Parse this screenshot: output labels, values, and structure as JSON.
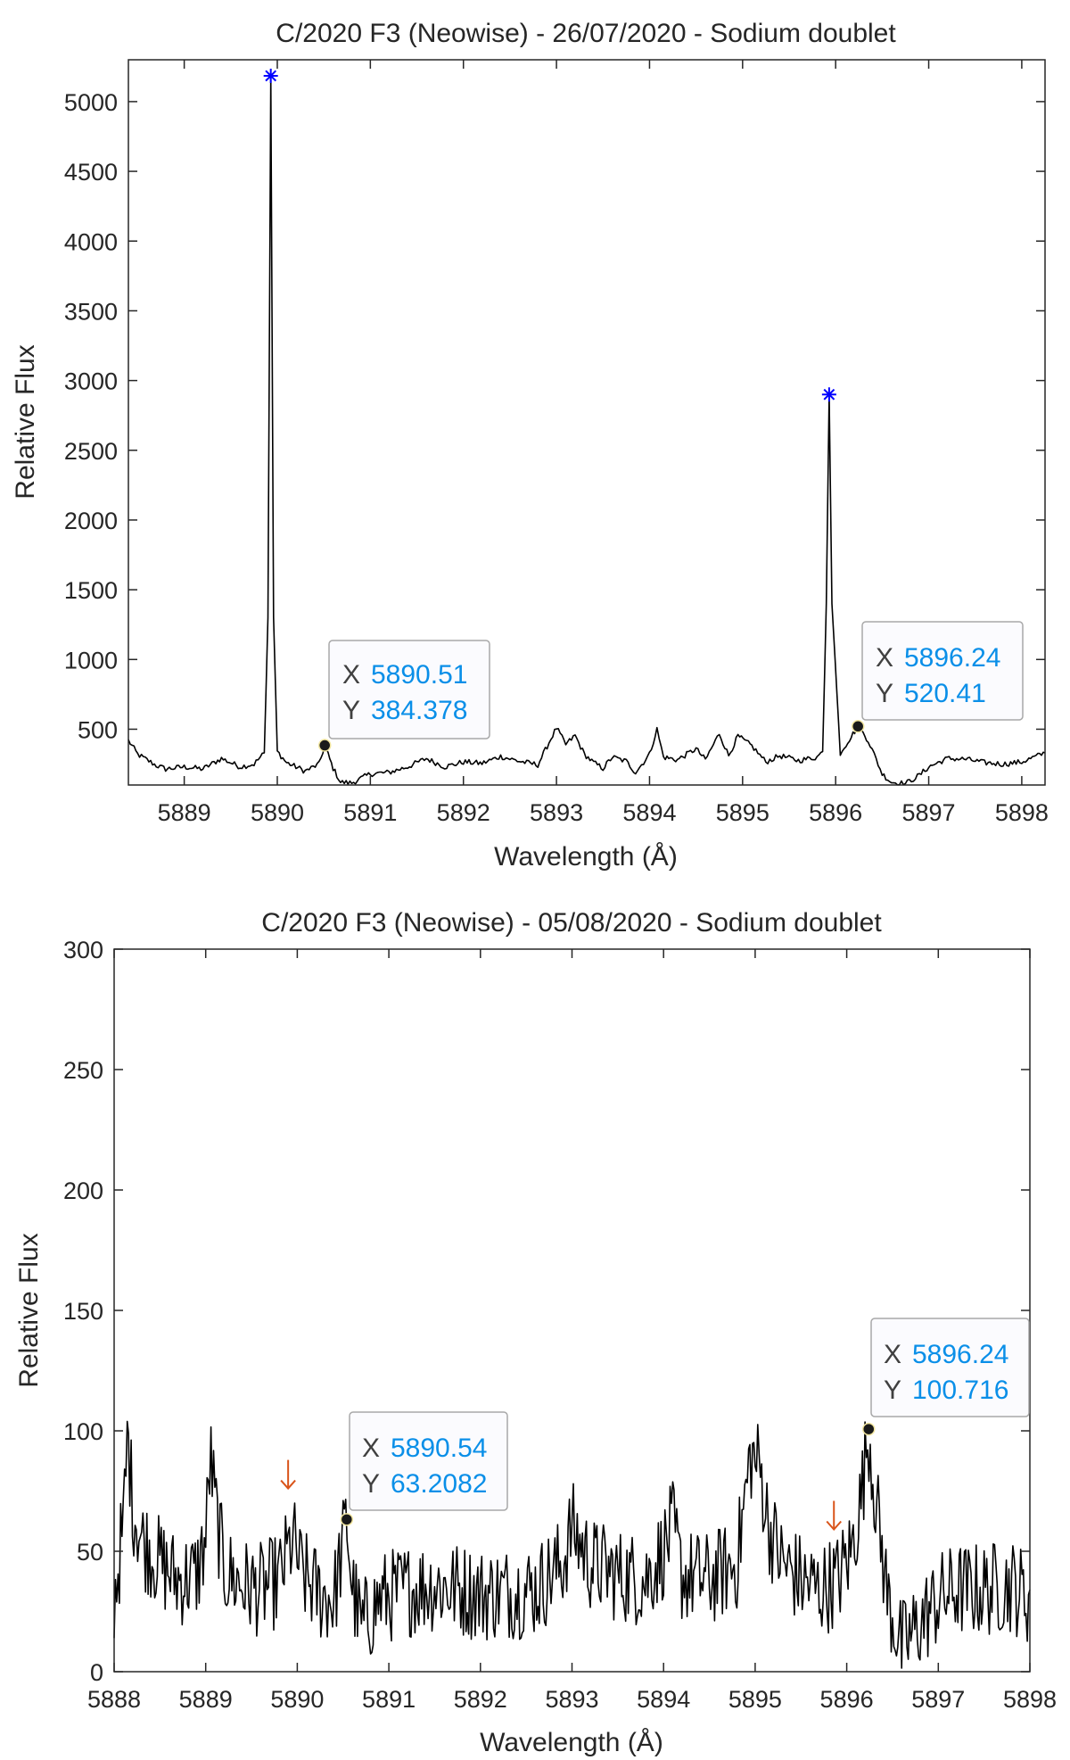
{
  "chart_data": [
    {
      "type": "line",
      "title": "C/2020 F3 (Neowise) - 26/07/2020 - Sodium doublet",
      "xlabel": "Wavelength (Å)",
      "ylabel": "Relative Flux",
      "xlim": [
        5888.4,
        5898.25
      ],
      "ylim": [
        100,
        5300
      ],
      "xticks": [
        5889,
        5890,
        5891,
        5892,
        5893,
        5894,
        5895,
        5896,
        5897,
        5898
      ],
      "xtick_labels": [
        "5889",
        "5890",
        "5891",
        "5892",
        "5893",
        "5894",
        "5895",
        "5896",
        "5897",
        "5898"
      ],
      "yticks": [
        500,
        1000,
        1500,
        2000,
        2500,
        3000,
        3500,
        4000,
        4500,
        5000
      ],
      "ytick_labels": [
        "500",
        "1000",
        "1500",
        "2000",
        "2500",
        "3000",
        "3500",
        "4000",
        "4500",
        "5000"
      ],
      "grid": false,
      "series": [
        {
          "color": "#000000",
          "points": [
            [
              5888.4,
              420
            ],
            [
              5888.5,
              320
            ],
            [
              5888.6,
              280
            ],
            [
              5888.7,
              240
            ],
            [
              5888.8,
              215
            ],
            [
              5889.0,
              230
            ],
            [
              5889.2,
              215
            ],
            [
              5889.4,
              290
            ],
            [
              5889.6,
              230
            ],
            [
              5889.75,
              250
            ],
            [
              5889.86,
              330
            ],
            [
              5889.9,
              1300
            ],
            [
              5889.93,
              5185
            ],
            [
              5889.96,
              1300
            ],
            [
              5890.0,
              340
            ],
            [
              5890.1,
              260
            ],
            [
              5890.3,
              200
            ],
            [
              5890.45,
              250
            ],
            [
              5890.51,
              384
            ],
            [
              5890.6,
              220
            ],
            [
              5890.68,
              120
            ],
            [
              5890.8,
              115
            ],
            [
              5891.0,
              180
            ],
            [
              5891.2,
              190
            ],
            [
              5891.4,
              230
            ],
            [
              5891.6,
              290
            ],
            [
              5891.8,
              230
            ],
            [
              5892.0,
              265
            ],
            [
              5892.2,
              255
            ],
            [
              5892.4,
              305
            ],
            [
              5892.6,
              270
            ],
            [
              5892.8,
              245
            ],
            [
              5893.0,
              510
            ],
            [
              5893.1,
              390
            ],
            [
              5893.2,
              455
            ],
            [
              5893.3,
              320
            ],
            [
              5893.4,
              260
            ],
            [
              5893.5,
              220
            ],
            [
              5893.6,
              300
            ],
            [
              5893.75,
              270
            ],
            [
              5893.85,
              190
            ],
            [
              5894.0,
              320
            ],
            [
              5894.08,
              500
            ],
            [
              5894.15,
              300
            ],
            [
              5894.3,
              280
            ],
            [
              5894.5,
              360
            ],
            [
              5894.6,
              280
            ],
            [
              5894.75,
              470
            ],
            [
              5894.85,
              310
            ],
            [
              5894.95,
              450
            ],
            [
              5895.1,
              380
            ],
            [
              5895.25,
              265
            ],
            [
              5895.4,
              310
            ],
            [
              5895.6,
              275
            ],
            [
              5895.8,
              300
            ],
            [
              5895.86,
              340
            ],
            [
              5895.9,
              1400
            ],
            [
              5895.93,
              2900
            ],
            [
              5895.96,
              1400
            ],
            [
              5896.05,
              330
            ],
            [
              5896.15,
              430
            ],
            [
              5896.24,
              520
            ],
            [
              5896.35,
              420
            ],
            [
              5896.5,
              180
            ],
            [
              5896.6,
              120
            ],
            [
              5896.75,
              110
            ],
            [
              5896.9,
              170
            ],
            [
              5897.0,
              230
            ],
            [
              5897.2,
              290
            ],
            [
              5897.4,
              285
            ],
            [
              5897.6,
              260
            ],
            [
              5897.8,
              250
            ],
            [
              5898.0,
              265
            ],
            [
              5898.25,
              330
            ]
          ]
        }
      ],
      "peak_markers": [
        {
          "x": 5889.93,
          "y": 5185,
          "color": "#0000ff"
        },
        {
          "x": 5895.93,
          "y": 2900,
          "color": "#0000ff"
        }
      ],
      "datatips": [
        {
          "x_label": "X",
          "y_label": "Y",
          "x_value": "5890.51",
          "y_value": "384.378",
          "x": 5890.51,
          "y": 384.378
        },
        {
          "x_label": "X",
          "y_label": "Y",
          "x_value": "5896.24",
          "y_value": "520.41",
          "x": 5896.24,
          "y": 520.41
        }
      ]
    },
    {
      "type": "line",
      "title": "C/2020 F3 (Neowise) - 05/08/2020 - Sodium doublet",
      "xlabel": "Wavelength (Å)",
      "ylabel": "Relative Flux",
      "xlim": [
        5888,
        5898
      ],
      "ylim": [
        0,
        300
      ],
      "xticks": [
        5888,
        5889,
        5890,
        5891,
        5892,
        5893,
        5894,
        5895,
        5896,
        5897,
        5898
      ],
      "xtick_labels": [
        "5888",
        "5889",
        "5890",
        "5891",
        "5892",
        "5893",
        "5894",
        "5895",
        "5896",
        "5897",
        "5898"
      ],
      "yticks": [
        0,
        50,
        100,
        150,
        200,
        250,
        300
      ],
      "ytick_labels": [
        "0",
        "50",
        "100",
        "150",
        "200",
        "250",
        "300"
      ],
      "grid": false,
      "series": [
        {
          "color": "#000000",
          "noise": 20,
          "points": [
            [
              5888.0,
              30
            ],
            [
              5888.05,
              45
            ],
            [
              5888.1,
              60
            ],
            [
              5888.15,
              100
            ],
            [
              5888.2,
              70
            ],
            [
              5888.3,
              55
            ],
            [
              5888.5,
              45
            ],
            [
              5888.7,
              38
            ],
            [
              5888.9,
              40
            ],
            [
              5889.0,
              55
            ],
            [
              5889.05,
              90
            ],
            [
              5889.1,
              70
            ],
            [
              5889.2,
              42
            ],
            [
              5889.4,
              36
            ],
            [
              5889.6,
              34
            ],
            [
              5889.8,
              38
            ],
            [
              5889.95,
              55
            ],
            [
              5890.05,
              40
            ],
            [
              5890.25,
              32
            ],
            [
              5890.4,
              30
            ],
            [
              5890.54,
              63
            ],
            [
              5890.6,
              35
            ],
            [
              5890.7,
              18
            ],
            [
              5890.9,
              30
            ],
            [
              5891.2,
              34
            ],
            [
              5891.5,
              36
            ],
            [
              5891.8,
              34
            ],
            [
              5892.0,
              32
            ],
            [
              5892.3,
              33
            ],
            [
              5892.6,
              34
            ],
            [
              5892.9,
              45
            ],
            [
              5893.0,
              60
            ],
            [
              5893.2,
              45
            ],
            [
              5893.5,
              40
            ],
            [
              5893.8,
              38
            ],
            [
              5894.0,
              50
            ],
            [
              5894.1,
              60
            ],
            [
              5894.2,
              40
            ],
            [
              5894.5,
              38
            ],
            [
              5894.8,
              45
            ],
            [
              5894.95,
              90
            ],
            [
              5895.05,
              85
            ],
            [
              5895.15,
              60
            ],
            [
              5895.3,
              45
            ],
            [
              5895.5,
              38
            ],
            [
              5895.7,
              34
            ],
            [
              5895.9,
              38
            ],
            [
              5896.05,
              50
            ],
            [
              5896.15,
              70
            ],
            [
              5896.24,
              100
            ],
            [
              5896.32,
              70
            ],
            [
              5896.45,
              30
            ],
            [
              5896.6,
              10
            ],
            [
              5896.8,
              20
            ],
            [
              5897.0,
              30
            ],
            [
              5897.2,
              34
            ],
            [
              5897.5,
              34
            ],
            [
              5897.8,
              36
            ],
            [
              5898.0,
              30
            ]
          ]
        }
      ],
      "arrow_markers": [
        {
          "x": 5889.9,
          "y": 82,
          "color": "#d9541a"
        },
        {
          "x": 5895.86,
          "y": 65,
          "color": "#d9541a"
        }
      ],
      "datatips": [
        {
          "x_label": "X",
          "y_label": "Y",
          "x_value": "5890.54",
          "y_value": "63.2082",
          "x": 5890.54,
          "y": 63.2082
        },
        {
          "x_label": "X",
          "y_label": "Y",
          "x_value": "5896.24",
          "y_value": "100.716",
          "x": 5896.24,
          "y": 100.716
        }
      ]
    }
  ]
}
